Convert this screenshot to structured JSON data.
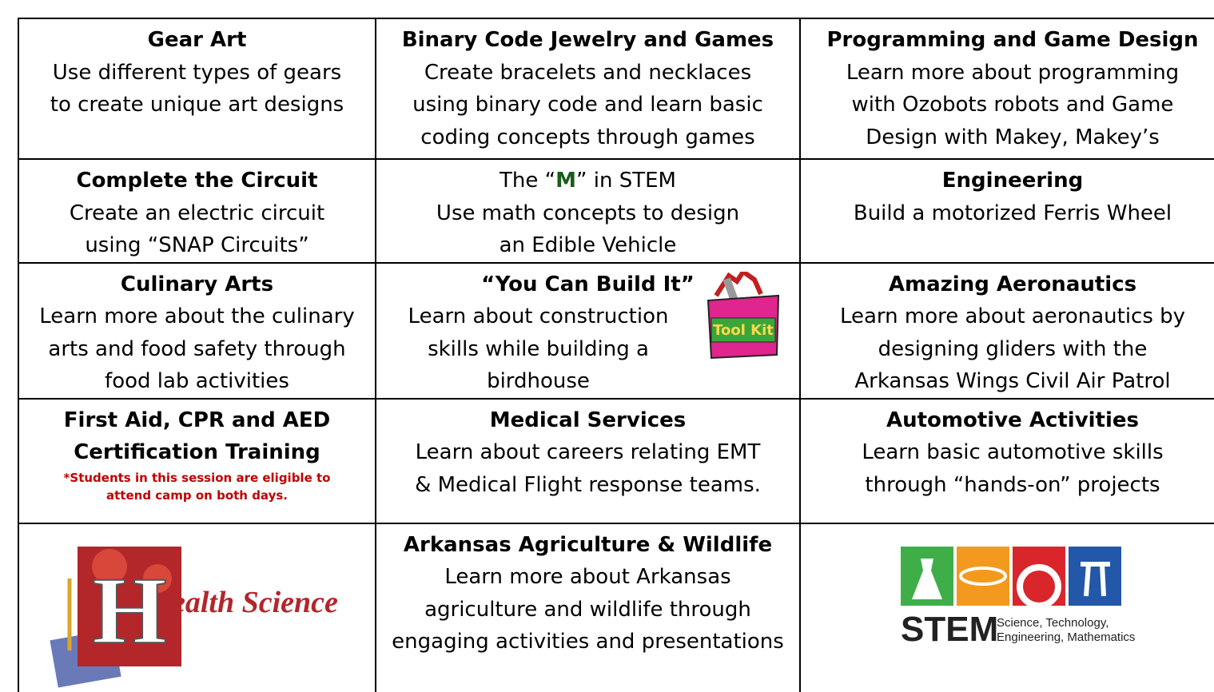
{
  "table": {
    "rows": [
      [
        {
          "title": [
            "Gear Art"
          ],
          "lines": [
            "Use different types of gears",
            "to create unique art designs"
          ]
        },
        {
          "title": [
            "Binary Code Jewelry and Games"
          ],
          "lines": [
            "Create bracelets and necklaces",
            "using binary code and learn basic",
            "coding concepts through games"
          ]
        },
        {
          "title": [
            "Programming and Game Design"
          ],
          "lines": [
            "Learn more about programming",
            "with Ozobots  robots and Game",
            "Design with Makey, Makey’s"
          ]
        }
      ],
      [
        {
          "title": [
            "Complete the Circuit"
          ],
          "lines": [
            "Create an electric circuit",
            "using “SNAP Circuits”"
          ]
        },
        {
          "title_parts": [
            "The “",
            "M",
            "” in STEM"
          ],
          "lines": [
            "Use math concepts to design",
            "an Edible Vehicle"
          ]
        },
        {
          "title": [
            "Engineering"
          ],
          "lines": [
            "Build a motorized Ferris Wheel"
          ]
        }
      ],
      [
        {
          "title": [
            "Culinary Arts"
          ],
          "lines": [
            "Learn more about the culinary",
            "arts and food safety through",
            "food lab activities"
          ]
        },
        {
          "title": [
            "“You Can Build It”"
          ],
          "lines": [
            "Learn about construction",
            "skills while building a",
            "birdhouse"
          ],
          "toolkit": "Tool Kit"
        },
        {
          "title": [
            "Amazing Aeronautics"
          ],
          "lines": [
            "Learn more about aeronautics by",
            "designing gliders with the",
            "Arkansas Wings Civil Air Patrol"
          ]
        }
      ],
      [
        {
          "title": [
            "First Aid, CPR and AED",
            "Certification Training"
          ],
          "note": [
            "*Students in this session are eligible to",
            "attend camp on both days."
          ]
        },
        {
          "title": [
            "Medical Services"
          ],
          "lines": [
            "Learn about careers relating EMT",
            "& Medical Flight response teams."
          ]
        },
        {
          "title": [
            "Automotive Activities"
          ],
          "lines": [
            "Learn basic automotive skills",
            "through “hands-on” projects"
          ]
        }
      ],
      [
        {
          "health_logo": [
            "H",
            "ealth Science"
          ]
        },
        {
          "title": [
            "Arkansas Agriculture & Wildlife"
          ],
          "lines": [
            "Learn more about Arkansas",
            "agriculture and wildlife through",
            "engaging activities and presentations"
          ]
        },
        {
          "stem_logo": {
            "word": "STEM",
            "caption": [
              "Science, Technology,",
              "Engineering, Mathematics"
            ]
          }
        }
      ]
    ]
  }
}
